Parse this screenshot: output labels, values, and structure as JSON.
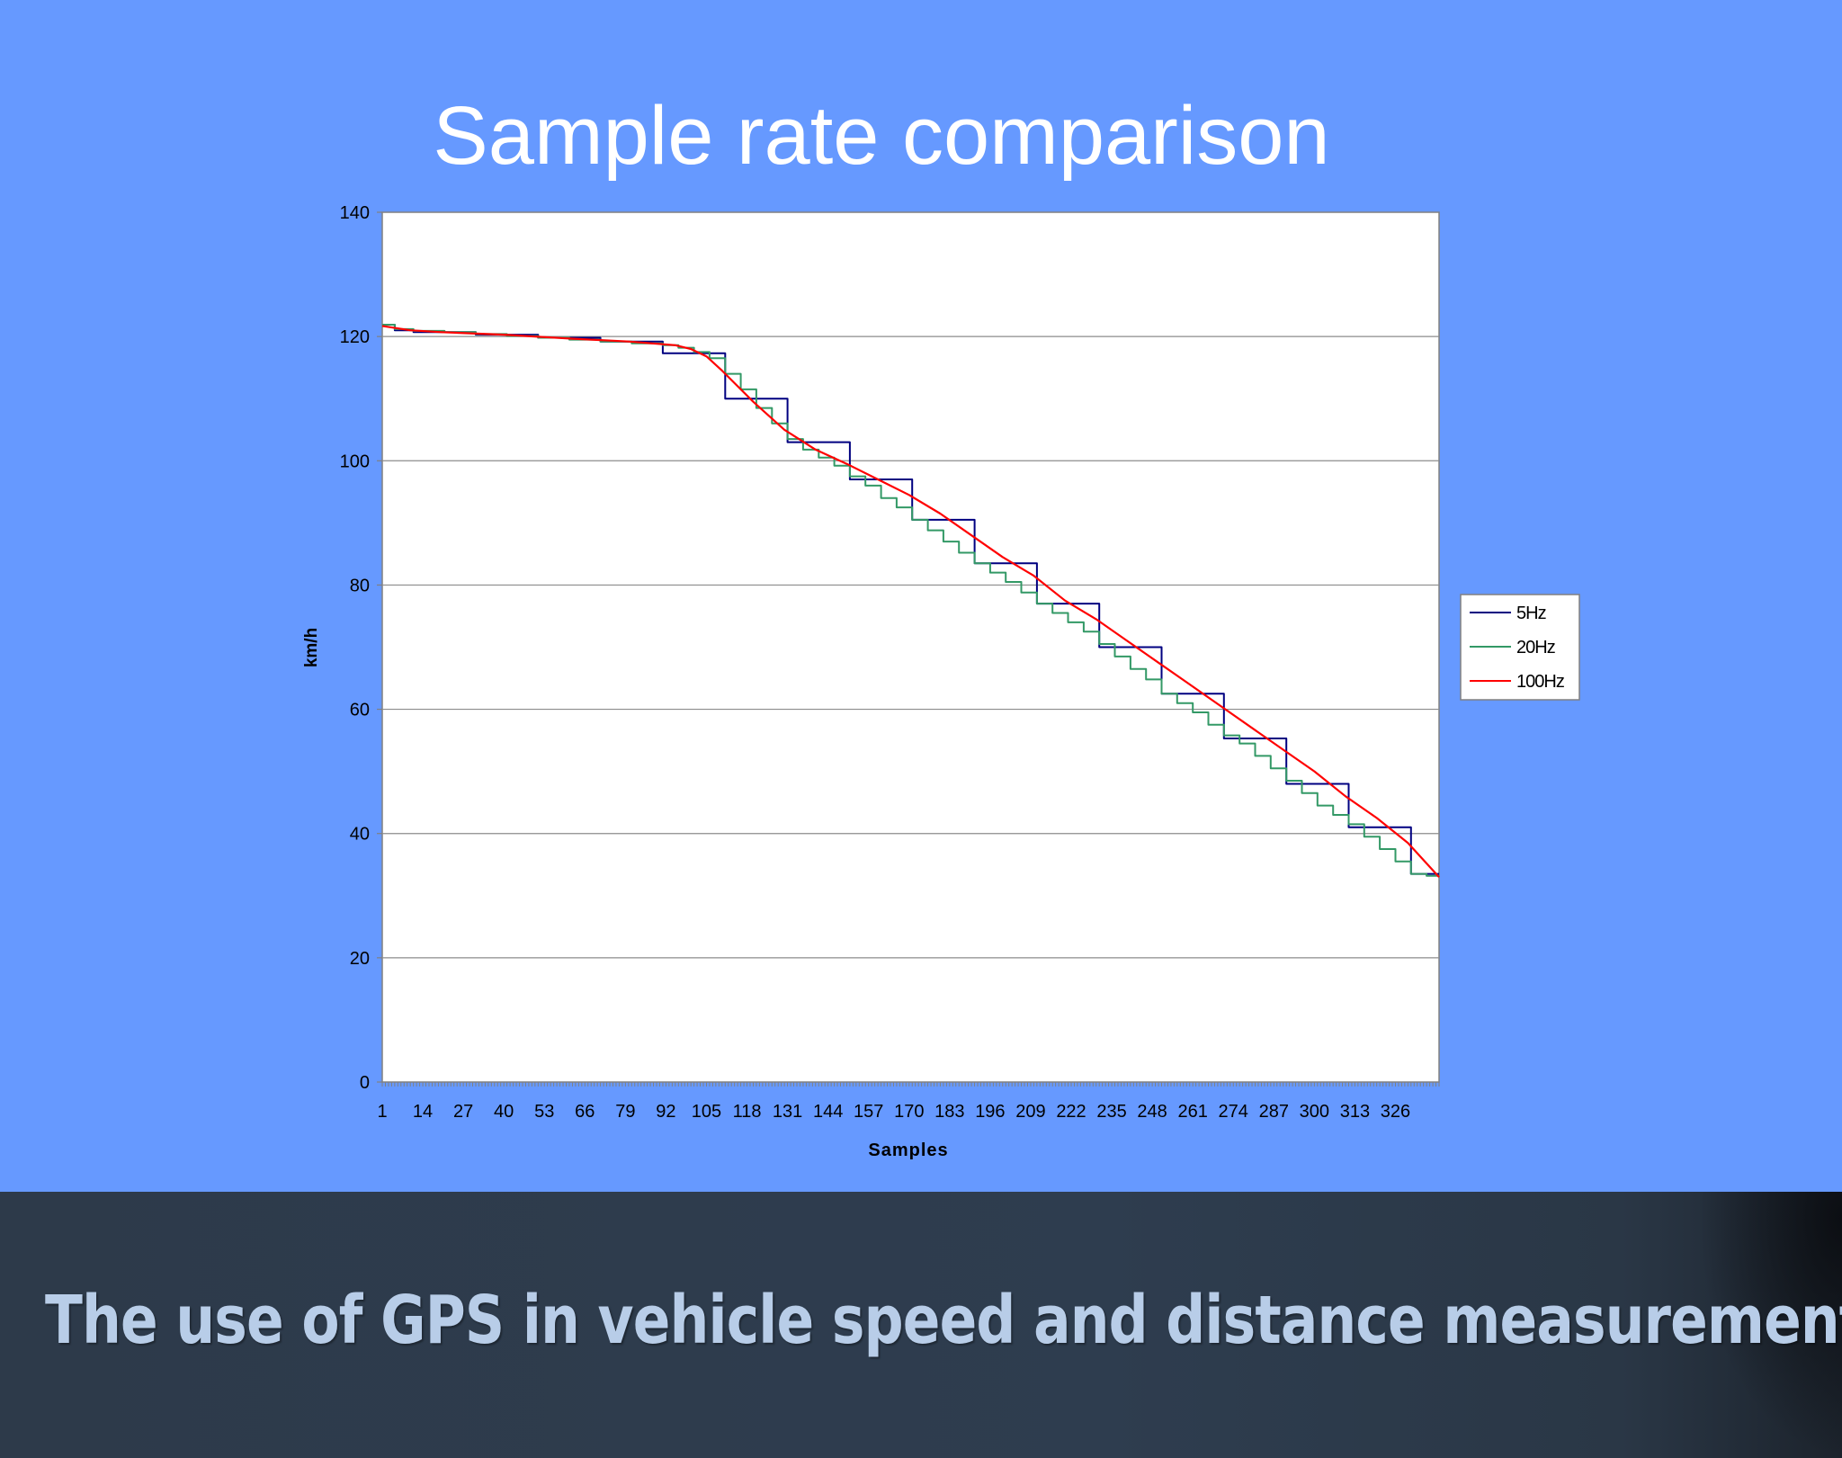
{
  "slide": {
    "title": "Sample rate comparison",
    "footer": "The use of GPS in vehicle speed and distance measurement"
  },
  "colors": {
    "background": "#6699ff",
    "plot_area": "#ffffff",
    "series_5hz": "#000080",
    "series_20hz": "#339966",
    "series_100hz": "#ff0000"
  },
  "chart_data": {
    "type": "line",
    "title": "",
    "xlabel": "Samples",
    "ylabel": "km/h",
    "ylim": [
      0,
      140
    ],
    "yticks": [
      0,
      20,
      40,
      60,
      80,
      100,
      120,
      140
    ],
    "xlim": [
      1,
      340
    ],
    "xtick_labels": [
      "1",
      "14",
      "27",
      "40",
      "53",
      "66",
      "79",
      "92",
      "105",
      "118",
      "131",
      "144",
      "157",
      "170",
      "183",
      "196",
      "209",
      "222",
      "235",
      "248",
      "261",
      "274",
      "287",
      "300",
      "313",
      "326"
    ],
    "grid": "horizontal major",
    "legend": "right",
    "series": [
      {
        "name": "5Hz",
        "color": "#000080",
        "step": true,
        "x": [
          1,
          5,
          11,
          31,
          51,
          71,
          91,
          111,
          131,
          151,
          171,
          191,
          211,
          231,
          251,
          271,
          291,
          311,
          331,
          340
        ],
        "y": [
          121.9,
          121.0,
          120.7,
          120.3,
          119.8,
          119.2,
          117.3,
          110.0,
          103.0,
          97.0,
          90.5,
          83.5,
          77.0,
          70.0,
          62.5,
          55.3,
          48.0,
          41.0,
          33.5,
          33.5
        ]
      },
      {
        "name": "20Hz",
        "color": "#339966",
        "step": true,
        "x": [
          1,
          5,
          11,
          21,
          31,
          41,
          51,
          61,
          71,
          81,
          91,
          96,
          101,
          106,
          111,
          116,
          121,
          126,
          131,
          136,
          141,
          146,
          151,
          156,
          161,
          166,
          171,
          176,
          181,
          186,
          191,
          196,
          201,
          206,
          211,
          216,
          221,
          226,
          231,
          236,
          241,
          246,
          251,
          256,
          261,
          266,
          271,
          276,
          281,
          286,
          291,
          296,
          301,
          306,
          311,
          316,
          321,
          326,
          331,
          336,
          340
        ],
        "y": [
          121.9,
          121.2,
          120.9,
          120.7,
          120.4,
          120.1,
          119.8,
          119.5,
          119.2,
          118.9,
          118.6,
          118.2,
          117.5,
          116.5,
          114.0,
          111.5,
          108.5,
          106.0,
          103.5,
          101.8,
          100.5,
          99.2,
          97.5,
          96.0,
          94.0,
          92.5,
          90.5,
          88.8,
          87.0,
          85.2,
          83.5,
          82.0,
          80.5,
          78.8,
          77.0,
          75.5,
          74.0,
          72.5,
          70.5,
          68.5,
          66.5,
          64.8,
          62.5,
          61.0,
          59.5,
          57.5,
          55.8,
          54.5,
          52.5,
          50.5,
          48.5,
          46.5,
          44.5,
          43.0,
          41.5,
          39.5,
          37.5,
          35.5,
          33.5,
          33.2,
          33.2
        ]
      },
      {
        "name": "100Hz",
        "color": "#ff0000",
        "step": false,
        "x": [
          1,
          10,
          20,
          40,
          60,
          80,
          95,
          100,
          105,
          110,
          120,
          130,
          140,
          150,
          160,
          170,
          180,
          190,
          200,
          210,
          220,
          230,
          240,
          250,
          260,
          270,
          280,
          290,
          300,
          310,
          320,
          330,
          340
        ],
        "y": [
          121.7,
          121.0,
          120.7,
          120.3,
          119.7,
          119.2,
          118.6,
          118.0,
          116.8,
          114.5,
          109.5,
          105.0,
          101.8,
          99.5,
          97.0,
          94.5,
          91.5,
          88.0,
          84.5,
          81.5,
          77.5,
          74.5,
          71.0,
          67.5,
          64.0,
          60.5,
          57.0,
          53.5,
          50.0,
          46.0,
          42.5,
          38.5,
          33.0
        ]
      }
    ]
  }
}
